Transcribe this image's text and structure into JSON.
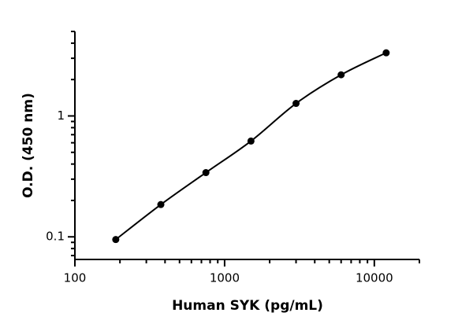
{
  "chart_data": {
    "type": "scatter",
    "xlabel": "Human SYK (pg/mL)",
    "ylabel": "O.D. (450 nm)",
    "x": [
      187.5,
      375,
      750,
      1500,
      3000,
      6000,
      12000
    ],
    "y": [
      0.095,
      0.185,
      0.34,
      0.62,
      1.27,
      2.19,
      3.33
    ],
    "color": "#000000",
    "line": true,
    "xlog": true,
    "ylog": true,
    "xlim": [
      100,
      20000
    ],
    "ylim": [
      0.065,
      5
    ],
    "xticks": [
      100,
      1000,
      10000
    ],
    "yticks": [
      0.1,
      1
    ],
    "xminorticks": [
      200,
      300,
      400,
      500,
      600,
      700,
      800,
      900,
      2000,
      3000,
      4000,
      5000,
      6000,
      7000,
      8000,
      9000,
      20000
    ],
    "yminorticks": [
      0.07,
      0.08,
      0.09,
      0.2,
      0.3,
      0.4,
      0.5,
      0.6,
      0.7,
      0.8,
      0.9,
      2,
      3,
      4,
      5
    ]
  }
}
